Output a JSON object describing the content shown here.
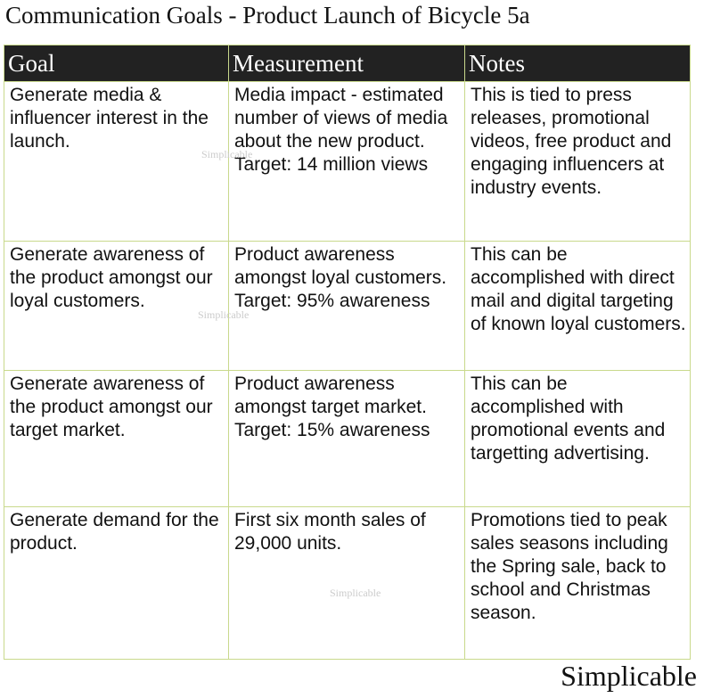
{
  "title": "Communication Goals - Product Launch of Bicycle 5a",
  "table": {
    "header": [
      "Goal",
      "Measurement",
      "Notes"
    ],
    "rows": [
      [
        [
          "Generate media & influencer interest in the launch."
        ],
        [
          "Media impact - estimated number of views of media about the new product.",
          "Target: 14 million views"
        ],
        [
          "This is tied to press releases, promotional videos, free product and engaging influencers at industry events."
        ]
      ],
      [
        [
          "Generate awareness of the product amongst our loyal customers."
        ],
        [
          "Product awareness amongst loyal customers.",
          "Target: 95% awareness"
        ],
        [
          "This can be accomplished with direct mail and digital targeting of known loyal customers."
        ]
      ],
      [
        [
          "Generate awareness of the product amongst our target market."
        ],
        [
          "Product awareness amongst target market.",
          "Target: 15% awareness"
        ],
        [
          "This can be accomplished with promotional events and targetting advertising."
        ]
      ],
      [
        [
          "Generate demand for the product."
        ],
        [
          "First six month sales of 29,000 units."
        ],
        [
          "Promotions tied to peak sales seasons including the Spring sale, back to school and Christmas season."
        ]
      ]
    ]
  },
  "watermarks": [
    "Simplicable",
    "Simplicable",
    "Simplicable"
  ],
  "footer": "Simplicable"
}
